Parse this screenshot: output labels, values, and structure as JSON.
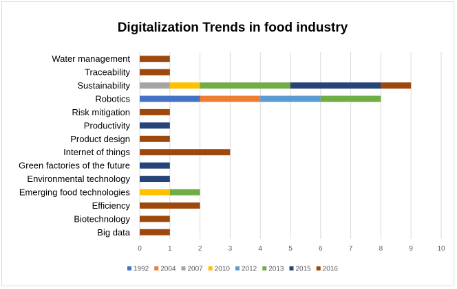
{
  "chart_data": {
    "type": "bar",
    "orientation": "horizontal",
    "stacked": true,
    "title": "Digitalization Trends in food industry",
    "xlabel": "",
    "ylabel": "",
    "xlim": [
      0,
      10
    ],
    "xticks": [
      0,
      1,
      2,
      3,
      4,
      5,
      6,
      7,
      8,
      9,
      10
    ],
    "grid": "vertical",
    "legend_position": "bottom",
    "categories": [
      "Water management",
      "Traceability",
      "Sustainability",
      "Robotics",
      "Risk mitigation",
      "Productivity",
      "Product design",
      "Internet of things",
      "Green factories of the future",
      "Environmental technology",
      "Emerging food technologies",
      "Efficiency",
      "Biotechnology",
      "Big data"
    ],
    "series": [
      {
        "name": "1992",
        "color": "#4472c4",
        "values": [
          0,
          0,
          0,
          2,
          0,
          0,
          0,
          0,
          0,
          0,
          0,
          0,
          0,
          0
        ]
      },
      {
        "name": "2004",
        "color": "#ed7d31",
        "values": [
          0,
          0,
          0,
          2,
          0,
          0,
          0,
          0,
          0,
          0,
          0,
          0,
          0,
          0
        ]
      },
      {
        "name": "2007",
        "color": "#a5a5a5",
        "values": [
          0,
          0,
          1,
          0,
          0,
          0,
          0,
          0,
          0,
          0,
          0,
          0,
          0,
          0
        ]
      },
      {
        "name": "2010",
        "color": "#ffc000",
        "values": [
          0,
          0,
          1,
          0,
          0,
          0,
          0,
          0,
          0,
          0,
          1,
          0,
          0,
          0
        ]
      },
      {
        "name": "2012",
        "color": "#5b9bd5",
        "values": [
          0,
          0,
          0,
          2,
          0,
          0,
          0,
          0,
          0,
          0,
          0,
          0,
          0,
          0
        ]
      },
      {
        "name": "2013",
        "color": "#70ad47",
        "values": [
          0,
          0,
          3,
          2,
          0,
          0,
          0,
          0,
          0,
          0,
          1,
          0,
          0,
          0
        ]
      },
      {
        "name": "2015",
        "color": "#264478",
        "values": [
          0,
          0,
          3,
          0,
          0,
          1,
          0,
          0,
          1,
          1,
          0,
          0,
          0,
          0
        ]
      },
      {
        "name": "2016",
        "color": "#9e480e",
        "values": [
          1,
          1,
          1,
          0,
          1,
          0,
          1,
          3,
          0,
          0,
          0,
          2,
          1,
          1
        ]
      }
    ],
    "colors": {
      "grid": "#d9d9d9",
      "tick_text": "#595959",
      "label_text": "#000000"
    }
  }
}
